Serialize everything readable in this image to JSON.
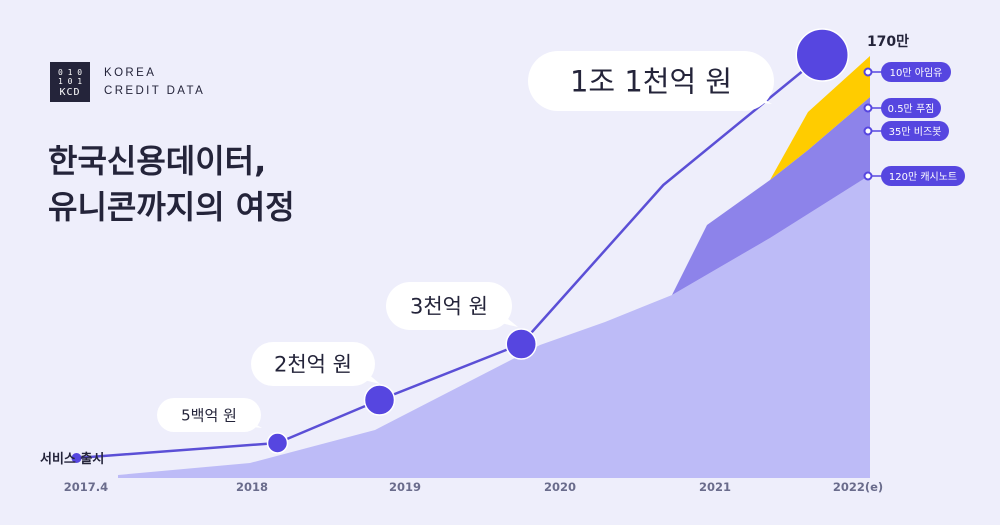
{
  "brand": {
    "logo_binary_top": "0 1 0",
    "logo_binary_mid": "1 0 1",
    "logo_initials": "KCD",
    "name_line1": "KOREA",
    "name_line2": "CREDIT DATA"
  },
  "title": {
    "line1": "한국신용데이터,",
    "line2": "유니콘까지의 여정"
  },
  "colors": {
    "background": "#eeeefb",
    "base_area": "#bdbbf7",
    "mid_area": "#8d83ea",
    "top_area": "#ffcc00",
    "line": "#5b4fd6",
    "milestone": "#5646e0",
    "tag_bg": "#5646e0",
    "text": "#24243a"
  },
  "chart_data": {
    "type": "line",
    "title": "",
    "xlabel": "",
    "ylabel": "",
    "x_ticks": [
      "2017.4",
      "2018",
      "2019",
      "2020",
      "2021",
      "2022(e)"
    ],
    "valuation_line": {
      "points": [
        {
          "x": "2017.4",
          "label": "서비스 출시",
          "milestone": false
        },
        {
          "x": "2018.3",
          "label": "5백억 원",
          "milestone": true
        },
        {
          "x": "2018.11",
          "label": "2천억 원",
          "milestone": true
        },
        {
          "x": "2019.10",
          "label": "3천억 원",
          "milestone": true
        },
        {
          "x": "2020.9",
          "label": "",
          "milestone": false
        },
        {
          "x": "2021.10",
          "label": "1조 1천억 원",
          "milestone": true
        }
      ]
    },
    "user_areas": {
      "total_label": "170만",
      "series": [
        {
          "name": "120만 캐시노트"
        },
        {
          "name": "35만 비즈봇"
        },
        {
          "name": "0.5만 푸짐"
        },
        {
          "name": "10만 아임유"
        }
      ]
    }
  }
}
